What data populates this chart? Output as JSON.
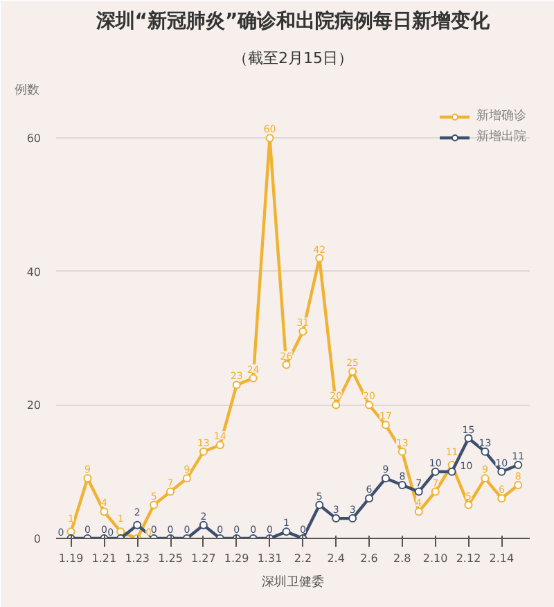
{
  "chart_data": {
    "type": "line",
    "title": "深圳“新冠肺炎”确诊和出院病例每日新增变化",
    "subtitle": "（截至2月15日）",
    "ylabel": "例数",
    "categories": [
      "1.19",
      null,
      "1.21",
      null,
      "1.23",
      null,
      "1.25",
      null,
      "1.27",
      null,
      "1.29",
      null,
      "1.31",
      null,
      "2.2",
      null,
      "2.4",
      null,
      "2.6",
      null,
      "2.8",
      null,
      "2.10",
      null,
      "2.12",
      null,
      "2.14",
      null
    ],
    "series": [
      {
        "name": "新增确诊",
        "color": "#f0b232",
        "values": [
          1,
          9,
          4,
          1,
          0,
          5,
          7,
          9,
          13,
          14,
          23,
          24,
          60,
          26,
          31,
          42,
          20,
          25,
          20,
          17,
          13,
          4,
          7,
          11,
          5,
          9,
          6,
          8
        ]
      },
      {
        "name": "新增出院",
        "color": "#3d4f6e",
        "values": [
          0,
          0,
          0,
          0,
          2,
          0,
          0,
          0,
          2,
          0,
          0,
          0,
          0,
          1,
          0,
          5,
          3,
          3,
          6,
          9,
          8,
          7,
          10,
          10,
          15,
          13,
          10,
          11
        ]
      }
    ],
    "ylim": [
      0,
      65
    ],
    "yticks": [
      0,
      20,
      40,
      60
    ],
    "grid": "y",
    "legend": "top right",
    "marker": "circle",
    "line_style": "solid",
    "data_labels": true,
    "annotations": [
      "深圳卫健委"
    ]
  }
}
